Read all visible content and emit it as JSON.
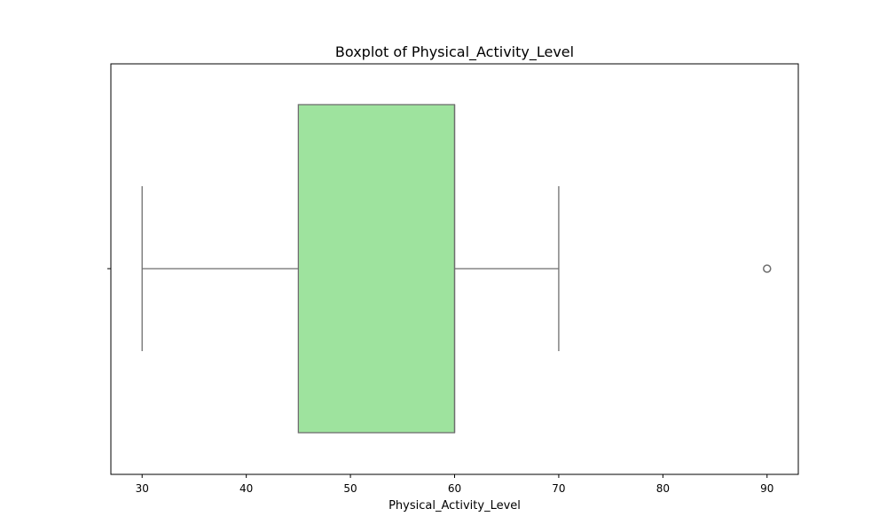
{
  "chart_data": {
    "type": "box",
    "title": "Boxplot of Physical_Activity_Level",
    "xlabel": "Physical_Activity_Level",
    "ylabel": "",
    "orientation": "horizontal",
    "xlim": [
      27,
      93
    ],
    "xticks": [
      30,
      40,
      50,
      60,
      70,
      80,
      90
    ],
    "grid": false,
    "box": {
      "whisker_low": 30,
      "q1": 45,
      "median": 60,
      "q3": 60,
      "whisker_high": 70,
      "outliers": [
        90
      ]
    },
    "colors": {
      "box_fill": "#9ee39e",
      "line": "#6e6e6e",
      "frame": "#000000"
    }
  }
}
